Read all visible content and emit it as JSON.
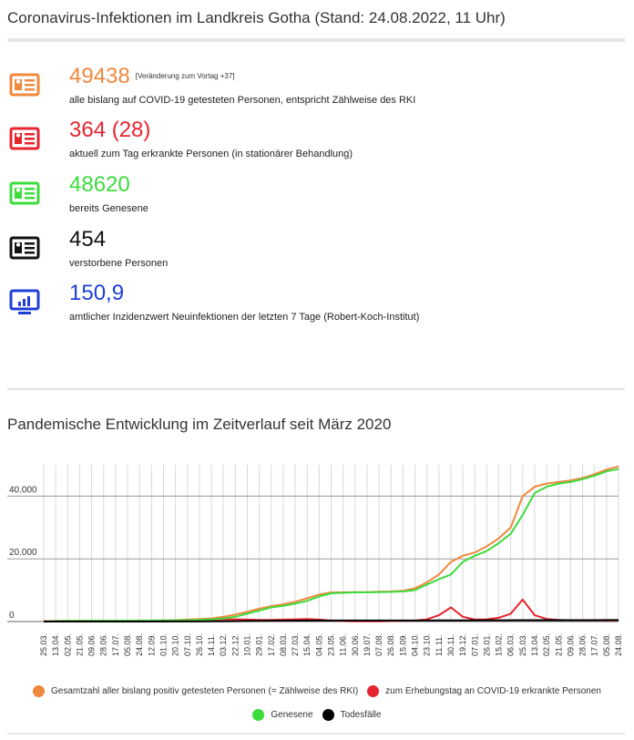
{
  "header": {
    "title": "Coronavirus-Infektionen im Landkreis Gotha (Stand: 24.08.2022, 11 Uhr)"
  },
  "stats": [
    {
      "value": "49438",
      "note": "[Veränderung zum Vortag +37]",
      "desc": "alle bislang auf COVID-19 getesteten Personen, entspricht Zählweise des RKI",
      "color": "#f0883e",
      "icon": "id-card-icon"
    },
    {
      "value": "364 (28)",
      "note": "",
      "desc": "aktuell zum Tag erkrankte Personen (in stationärer Behandlung)",
      "color": "#e8242f",
      "icon": "id-card-icon"
    },
    {
      "value": "48620",
      "note": "",
      "desc": "bereits Genesene",
      "color": "#3ddc3d",
      "icon": "id-card-icon"
    },
    {
      "value": "454",
      "note": "",
      "desc": "verstorbene Personen",
      "color": "#111111",
      "icon": "id-card-icon"
    },
    {
      "value": "150,9",
      "note": "",
      "desc": "amtlicher Inzidenzwert Neuinfektionen der letzten 7 Tage (Robert-Koch-Institut)",
      "color": "#1f3fd6",
      "icon": "monitor-chart-icon"
    }
  ],
  "section2": {
    "title": "Pandemische Entwicklung im Zeitverlauf seit März 2020"
  },
  "chart_data": {
    "type": "line",
    "title": "",
    "xlabel": "",
    "ylabel": "",
    "ylim": [
      0,
      50000
    ],
    "yticks": [
      "0",
      "20.000",
      "40.000"
    ],
    "ytick_values": [
      0,
      20000,
      40000
    ],
    "grid": true,
    "legend_position": "bottom",
    "x": [
      "25.03.",
      "13.04.",
      "02.05.",
      "21.05.",
      "09.06.",
      "28.06.",
      "17.07.",
      "05.08.",
      "24.08.",
      "12.09.",
      "01.10.",
      "20.10.",
      "07.10.",
      "26.10.",
      "14.11.",
      "03.12.",
      "22.12.",
      "10.01.",
      "29.01.",
      "17.02.",
      "08.03.",
      "27.03.",
      "15.04.",
      "04.05.",
      "23.05.",
      "11.06.",
      "30.06.",
      "19.07.",
      "07.08.",
      "26.08.",
      "15.09.",
      "04.10.",
      "23.10.",
      "11.11.",
      "30.11.",
      "19.12.",
      "07.01.",
      "26.01.",
      "15.02.",
      "06.03.",
      "25.03.",
      "13.04.",
      "02.05.",
      "21.05.",
      "09.06.",
      "28.06.",
      "17.07.",
      "05.08.",
      "24.08."
    ],
    "series": [
      {
        "name": "Gesamtzahl aller bislang positiv getesteten Personen (= Zählweise des RKI)",
        "color": "#f0883e",
        "values": [
          60,
          200,
          240,
          250,
          260,
          270,
          290,
          300,
          310,
          330,
          350,
          450,
          600,
          800,
          1000,
          1500,
          2200,
          3100,
          4100,
          4900,
          5500,
          6300,
          7400,
          8600,
          9300,
          9300,
          9400,
          9400,
          9500,
          9600,
          9800,
          10600,
          12500,
          15000,
          19000,
          21000,
          22000,
          24000,
          26500,
          30000,
          40000,
          43000,
          44000,
          44500,
          45000,
          45800,
          47000,
          48500,
          49438
        ]
      },
      {
        "name": "zum Erhebungstag an COVID-19 erkrankte Personen",
        "color": "#e8242f",
        "values": [
          40,
          60,
          20,
          10,
          10,
          10,
          20,
          20,
          20,
          40,
          80,
          200,
          300,
          400,
          500,
          700,
          700,
          600,
          500,
          500,
          600,
          700,
          800,
          600,
          300,
          150,
          100,
          100,
          100,
          150,
          200,
          300,
          700,
          2000,
          4500,
          1500,
          600,
          700,
          1200,
          2500,
          7000,
          2000,
          800,
          500,
          400,
          400,
          400,
          380,
          364
        ]
      },
      {
        "name": "Genesene",
        "color": "#3ddc3d",
        "values": [
          0,
          150,
          210,
          230,
          250,
          260,
          270,
          290,
          300,
          310,
          320,
          350,
          400,
          500,
          700,
          1000,
          1500,
          2500,
          3500,
          4500,
          5000,
          5700,
          6600,
          8000,
          9000,
          9150,
          9300,
          9300,
          9400,
          9450,
          9600,
          10000,
          11800,
          13500,
          15000,
          19000,
          21000,
          22500,
          25000,
          28000,
          34000,
          41000,
          43000,
          44000,
          44500,
          45400,
          46500,
          47900,
          48620
        ]
      },
      {
        "name": "Todesfälle",
        "color": "#000000",
        "values": [
          0,
          5,
          10,
          12,
          12,
          12,
          12,
          12,
          13,
          13,
          15,
          18,
          25,
          40,
          60,
          90,
          130,
          180,
          220,
          250,
          270,
          290,
          300,
          310,
          315,
          318,
          320,
          320,
          320,
          321,
          322,
          325,
          330,
          345,
          365,
          385,
          395,
          400,
          410,
          420,
          430,
          436,
          440,
          444,
          446,
          448,
          450,
          452,
          454
        ]
      }
    ]
  }
}
